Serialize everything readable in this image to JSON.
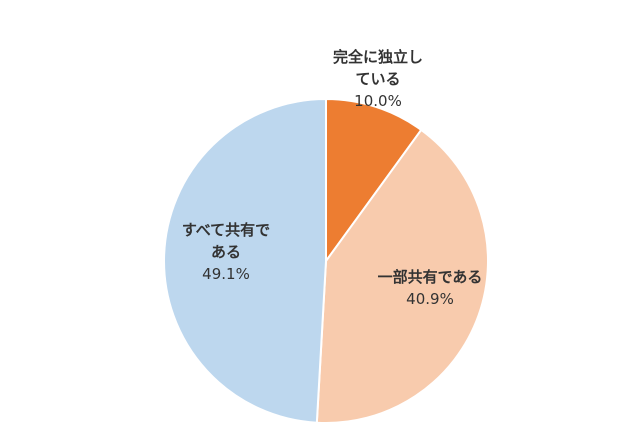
{
  "chart_data": {
    "type": "pie",
    "slices": [
      {
        "label_lines": [
          "完全に独立し",
          "ている"
        ],
        "value": 10.0,
        "value_label": "10.0%",
        "color": "#ED7D31"
      },
      {
        "label_lines": [
          "一部共有である"
        ],
        "value": 40.9,
        "value_label": "40.9%",
        "color": "#F8CBAD"
      },
      {
        "label_lines": [
          "すべて共有で",
          "ある"
        ],
        "value": 49.1,
        "value_label": "49.1%",
        "color": "#BDD7EE"
      }
    ],
    "start_angle": "12 o'clock",
    "direction": "clockwise",
    "legend": "none"
  }
}
